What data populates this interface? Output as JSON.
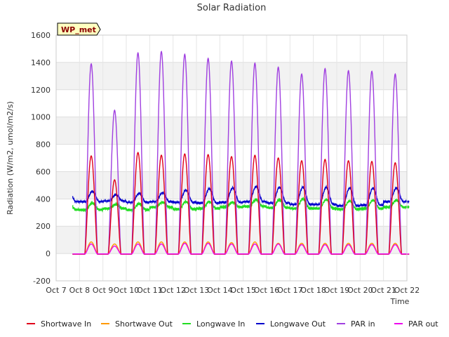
{
  "chart_data": {
    "type": "line",
    "title": "Solar Radiation",
    "xlabel": "Time",
    "ylabel": "Radiation (W/m2, umol/m2/s)",
    "site_label": "WP_met",
    "ylim": [
      -200,
      1600
    ],
    "xlim": [
      7,
      22
    ],
    "yticks": [
      -200,
      0,
      200,
      400,
      600,
      800,
      1000,
      1200,
      1400,
      1600
    ],
    "xticks": [
      7,
      8,
      9,
      10,
      11,
      12,
      13,
      14,
      15,
      16,
      17,
      18,
      19,
      20,
      21,
      22
    ],
    "xtick_labels": [
      "Oct 7",
      "Oct 8",
      "Oct 9",
      "Oct 10",
      "Oct 11",
      "Oct 12",
      "Oct 13",
      "Oct 14",
      "Oct 15",
      "Oct 16",
      "Oct 17",
      "Oct 18",
      "Oct 19",
      "Oct 20",
      "Oct 21",
      "Oct 22"
    ],
    "grid": true,
    "legend_position": "bottom",
    "daily_peaks": {
      "days": [
        8,
        9,
        10,
        11,
        12,
        13,
        14,
        15,
        16,
        17,
        18,
        19,
        20,
        21
      ],
      "noon_offset": 0.5,
      "PAR in": [
        1390,
        1050,
        1470,
        1480,
        1460,
        1430,
        1410,
        1395,
        1365,
        1315,
        1355,
        1340,
        1335,
        1315
      ],
      "Shortwave In": [
        715,
        540,
        740,
        720,
        730,
        725,
        710,
        720,
        700,
        680,
        690,
        680,
        675,
        665
      ],
      "Shortwave Out": [
        85,
        70,
        85,
        85,
        85,
        85,
        80,
        85,
        75,
        75,
        75,
        75,
        75,
        75
      ],
      "PAR out": [
        70,
        55,
        70,
        70,
        75,
        75,
        70,
        70,
        70,
        65,
        65,
        65,
        65,
        65
      ],
      "Longwave In": [
        370,
        360,
        365,
        375,
        380,
        380,
        375,
        395,
        395,
        400,
        395,
        385,
        390,
        390
      ],
      "Longwave Out": [
        455,
        430,
        440,
        445,
        465,
        475,
        480,
        490,
        485,
        485,
        485,
        480,
        480,
        480
      ]
    },
    "night_levels": {
      "Longwave In": [
        320,
        330,
        320,
        340,
        325,
        330,
        340,
        345,
        335,
        330,
        330,
        325,
        330,
        340
      ],
      "Longwave Out": [
        380,
        385,
        375,
        380,
        375,
        370,
        375,
        380,
        370,
        360,
        360,
        350,
        355,
        380
      ],
      "Shortwave In": -5,
      "Shortwave Out": -3,
      "PAR in": -5,
      "PAR out": -3
    },
    "series": [
      {
        "name": "Shortwave In",
        "color": "#e0001a"
      },
      {
        "name": "Shortwave Out",
        "color": "#ff9900"
      },
      {
        "name": "Longwave In",
        "color": "#22dd22"
      },
      {
        "name": "Longwave Out",
        "color": "#0000cc"
      },
      {
        "name": "PAR in",
        "color": "#a040e0"
      },
      {
        "name": "PAR out",
        "color": "#ee00ee"
      }
    ]
  }
}
